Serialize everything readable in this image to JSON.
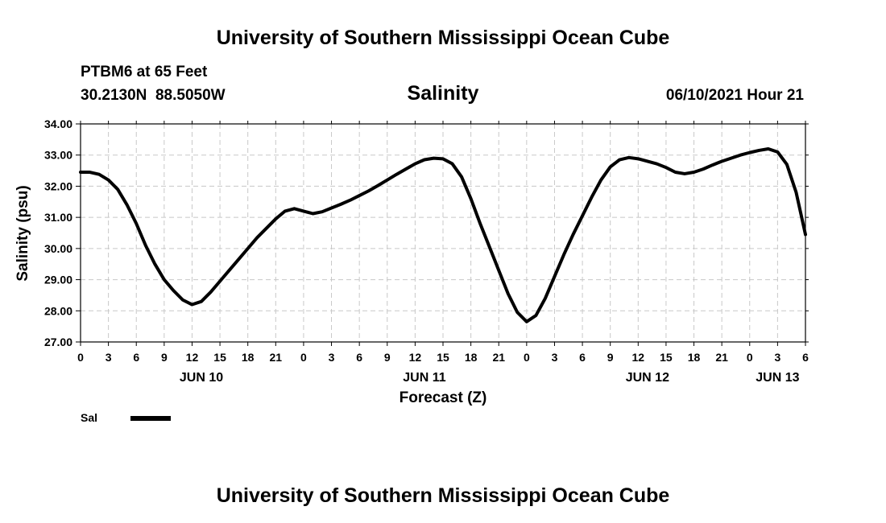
{
  "header": {
    "title": "University of Southern Mississippi Ocean Cube",
    "station": "PTBM6 at 65 Feet",
    "coords": "30.2130N  88.5050W",
    "parameter": "Salinity",
    "timestamp": "06/10/2021 Hour 21"
  },
  "footer": {
    "title": "University of Southern Mississippi Ocean Cube"
  },
  "colors": {
    "line": "#000000",
    "grid": "#c8c8c8",
    "background": "#ffffff"
  },
  "chart_data": {
    "type": "line",
    "title": "Salinity",
    "xlabel": "Forecast (Z)",
    "ylabel": "Salinity (psu)",
    "ylim": [
      27.0,
      34.0
    ],
    "yticks": [
      "27.00",
      "28.00",
      "29.00",
      "30.00",
      "31.00",
      "32.00",
      "33.00",
      "34.00"
    ],
    "xlim_hours": [
      0,
      78
    ],
    "xtick_step_hours": 3,
    "xtick_labels": [
      "0",
      "3",
      "6",
      "9",
      "12",
      "15",
      "18",
      "21",
      "0",
      "3",
      "6",
      "9",
      "12",
      "15",
      "18",
      "21",
      "0",
      "3",
      "6",
      "9",
      "12",
      "15",
      "18",
      "21",
      "0",
      "3",
      "6"
    ],
    "date_labels": [
      {
        "hour": 13,
        "label": "JUN 10"
      },
      {
        "hour": 37,
        "label": "JUN 11"
      },
      {
        "hour": 61,
        "label": "JUN 12"
      },
      {
        "hour": 75,
        "label": "JUN 13"
      }
    ],
    "grid": true,
    "legend": {
      "position": "bottom-left",
      "entries": [
        {
          "name": "Sal"
        }
      ]
    },
    "series": [
      {
        "name": "Sal",
        "x_hours": [
          0,
          1,
          2,
          3,
          4,
          5,
          6,
          7,
          8,
          9,
          10,
          11,
          12,
          13,
          14,
          15,
          16,
          17,
          18,
          19,
          20,
          21,
          22,
          23,
          24,
          25,
          26,
          27,
          28,
          29,
          30,
          31,
          32,
          33,
          34,
          35,
          36,
          37,
          38,
          39,
          40,
          41,
          42,
          43,
          44,
          45,
          46,
          47,
          48,
          49,
          50,
          51,
          52,
          53,
          54,
          55,
          56,
          57,
          58,
          59,
          60,
          61,
          62,
          63,
          64,
          65,
          66,
          67,
          68,
          69,
          70,
          71,
          72,
          73,
          74,
          75,
          76,
          77,
          78
        ],
        "values": [
          32.45,
          32.45,
          32.38,
          32.2,
          31.9,
          31.4,
          30.8,
          30.1,
          29.5,
          29.0,
          28.65,
          28.35,
          28.2,
          28.3,
          28.6,
          28.95,
          29.3,
          29.65,
          30.0,
          30.35,
          30.65,
          30.95,
          31.2,
          31.28,
          31.2,
          31.12,
          31.18,
          31.3,
          31.42,
          31.55,
          31.7,
          31.85,
          32.02,
          32.2,
          32.38,
          32.55,
          32.72,
          32.85,
          32.9,
          32.88,
          32.72,
          32.3,
          31.6,
          30.8,
          30.05,
          29.3,
          28.55,
          27.95,
          27.65,
          27.85,
          28.4,
          29.1,
          29.8,
          30.45,
          31.05,
          31.65,
          32.2,
          32.62,
          32.85,
          32.92,
          32.88,
          32.8,
          32.72,
          32.6,
          32.45,
          32.4,
          32.45,
          32.55,
          32.68,
          32.8,
          32.9,
          33.0,
          33.08,
          33.15,
          33.2,
          33.1,
          32.7,
          31.8,
          30.45
        ]
      }
    ]
  }
}
